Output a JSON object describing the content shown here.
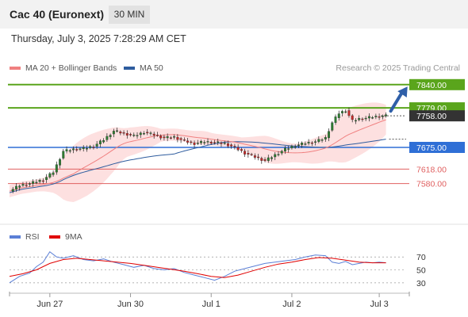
{
  "header": {
    "title": "Cac 40 (Euronext)",
    "timeframe_label": "30 MIN"
  },
  "datetime": "Thursday, July 3, 2025 7:28:29 AM CET",
  "legend": {
    "ma20_label": "MA 20 + Bollinger Bands",
    "ma20_color": "#f08080",
    "ma50_label": "MA 50",
    "ma50_color": "#2e5c9e",
    "copyright": "Research © 2025 Trading Central"
  },
  "rsi_legend": {
    "rsi_label": "RSI",
    "rsi_color": "#5b7fd6",
    "ma_label": "9MA",
    "ma_color": "#e00000"
  },
  "chart_data": {
    "type": "line",
    "subtype": "candlestick",
    "x_ticks": [
      "Jun 27",
      "Jun 30",
      "Jul 1",
      "Jul 2",
      "Jul 3"
    ],
    "price_ylim": [
      7500,
      7850
    ],
    "levels": [
      {
        "value": 7840.0,
        "label": "7840.00",
        "color": "#5aa51c",
        "style": "resistance"
      },
      {
        "value": 7779.0,
        "label": "7779.00",
        "color": "#5aa51c",
        "style": "resistance"
      },
      {
        "value": 7758.0,
        "label": "7758.00",
        "color": "#333333",
        "style": "last-price"
      },
      {
        "value": 7675.0,
        "label": "7675.00",
        "color": "#2f6fd6",
        "style": "pivot"
      },
      {
        "value": 7618.0,
        "label": "7618.00",
        "color": "#e06060",
        "style": "support"
      },
      {
        "value": 7580.0,
        "label": "7580.00",
        "color": "#e06060",
        "style": "support"
      }
    ],
    "price_path": [
      [
        0,
        7560
      ],
      [
        3,
        7575
      ],
      [
        6,
        7580
      ],
      [
        10,
        7590
      ],
      [
        13,
        7610
      ],
      [
        16,
        7665
      ],
      [
        19,
        7670
      ],
      [
        22,
        7672
      ],
      [
        25,
        7678
      ],
      [
        28,
        7695
      ],
      [
        31,
        7718
      ],
      [
        34,
        7712
      ],
      [
        37,
        7705
      ],
      [
        40,
        7715
      ],
      [
        43,
        7708
      ],
      [
        46,
        7700
      ],
      [
        49,
        7702
      ],
      [
        52,
        7692
      ],
      [
        55,
        7685
      ],
      [
        58,
        7690
      ],
      [
        61,
        7688
      ],
      [
        64,
        7685
      ],
      [
        67,
        7675
      ],
      [
        70,
        7660
      ],
      [
        73,
        7650
      ],
      [
        76,
        7640
      ],
      [
        79,
        7655
      ],
      [
        82,
        7670
      ],
      [
        85,
        7680
      ],
      [
        88,
        7686
      ],
      [
        91,
        7690
      ],
      [
        94,
        7700
      ],
      [
        96,
        7740
      ],
      [
        98,
        7765
      ],
      [
        100,
        7772
      ],
      [
        102,
        7745
      ],
      [
        104,
        7750
      ],
      [
        106,
        7752
      ],
      [
        108,
        7755
      ],
      [
        110,
        7757
      ],
      [
        112,
        7758
      ]
    ],
    "rsi_ticks": [
      30,
      50,
      70
    ],
    "rsi_ylim": [
      20,
      85
    ],
    "rsi": [
      [
        0,
        30
      ],
      [
        3,
        40
      ],
      [
        6,
        45
      ],
      [
        8,
        55
      ],
      [
        10,
        62
      ],
      [
        12,
        78
      ],
      [
        14,
        70
      ],
      [
        16,
        68
      ],
      [
        19,
        72
      ],
      [
        22,
        66
      ],
      [
        25,
        64
      ],
      [
        28,
        67
      ],
      [
        31,
        62
      ],
      [
        34,
        58
      ],
      [
        37,
        54
      ],
      [
        40,
        57
      ],
      [
        43,
        52
      ],
      [
        46,
        50
      ],
      [
        49,
        52
      ],
      [
        52,
        46
      ],
      [
        55,
        42
      ],
      [
        58,
        38
      ],
      [
        61,
        34
      ],
      [
        64,
        40
      ],
      [
        67,
        48
      ],
      [
        70,
        52
      ],
      [
        73,
        56
      ],
      [
        76,
        60
      ],
      [
        79,
        62
      ],
      [
        82,
        64
      ],
      [
        85,
        66
      ],
      [
        88,
        70
      ],
      [
        91,
        73
      ],
      [
        94,
        72
      ],
      [
        96,
        62
      ],
      [
        98,
        60
      ],
      [
        100,
        63
      ],
      [
        102,
        58
      ],
      [
        104,
        60
      ],
      [
        106,
        62
      ],
      [
        108,
        61
      ],
      [
        110,
        62
      ],
      [
        112,
        61
      ]
    ],
    "rsi_ma": [
      [
        0,
        40
      ],
      [
        4,
        44
      ],
      [
        8,
        50
      ],
      [
        12,
        60
      ],
      [
        16,
        66
      ],
      [
        20,
        68
      ],
      [
        24,
        66
      ],
      [
        28,
        64
      ],
      [
        32,
        62
      ],
      [
        36,
        60
      ],
      [
        40,
        57
      ],
      [
        44,
        54
      ],
      [
        48,
        51
      ],
      [
        52,
        48
      ],
      [
        56,
        44
      ],
      [
        60,
        40
      ],
      [
        64,
        38
      ],
      [
        68,
        42
      ],
      [
        72,
        48
      ],
      [
        76,
        54
      ],
      [
        80,
        59
      ],
      [
        84,
        62
      ],
      [
        88,
        66
      ],
      [
        92,
        69
      ],
      [
        96,
        68
      ],
      [
        100,
        65
      ],
      [
        104,
        62
      ],
      [
        108,
        61
      ],
      [
        112,
        61
      ]
    ],
    "forecast_arrow": {
      "from": [
        112,
        7758
      ],
      "to": [
        117,
        7835
      ]
    }
  }
}
